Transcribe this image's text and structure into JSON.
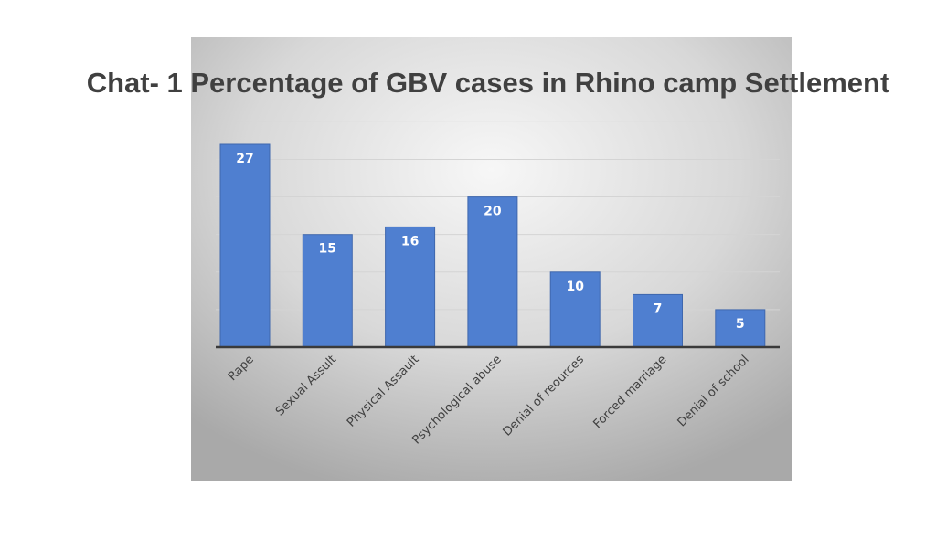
{
  "chart_data": {
    "type": "bar",
    "title": "Chat- 1 Percentage of GBV cases in Rhino camp Settlement",
    "categories": [
      "Rape",
      "Sexual Assult",
      "Physical Assault",
      "Psychological abuse",
      "Denial of reources",
      "Forced marriage",
      "Denial of school"
    ],
    "values": [
      27,
      15,
      16,
      20,
      10,
      7,
      5
    ],
    "xlabel": "",
    "ylabel": "",
    "ylim": [
      0,
      30
    ],
    "grid": true,
    "legend": "none",
    "data_labels": true,
    "colors": {
      "bar": "#4f7fd0",
      "bar_edge": "#3f67ad",
      "axis": "#3a3a3a",
      "grid": "#d4d4d4",
      "plot_background_light": "#f7f7f7",
      "plot_background_dark": "#a9a9a9"
    }
  }
}
